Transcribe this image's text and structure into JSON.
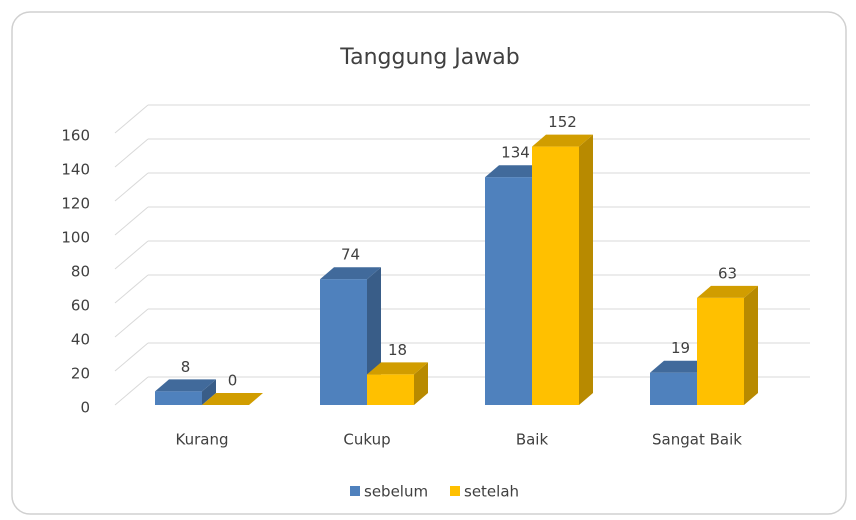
{
  "chart_data": {
    "type": "bar",
    "title": "Tanggung Jawab",
    "categories": [
      "Kurang",
      "Cukup",
      "Baik",
      "Sangat Baik"
    ],
    "series": [
      {
        "name": "sebelum",
        "color": "#4f81bd",
        "values": [
          8,
          74,
          134,
          19
        ]
      },
      {
        "name": "setelah",
        "color": "#ffc000",
        "values": [
          0,
          18,
          152,
          63
        ]
      }
    ],
    "ylim": [
      0,
      160
    ],
    "yticks": [
      0,
      20,
      40,
      60,
      80,
      100,
      120,
      140,
      160
    ],
    "grid": true,
    "legend": "bottom",
    "three_d": true
  }
}
